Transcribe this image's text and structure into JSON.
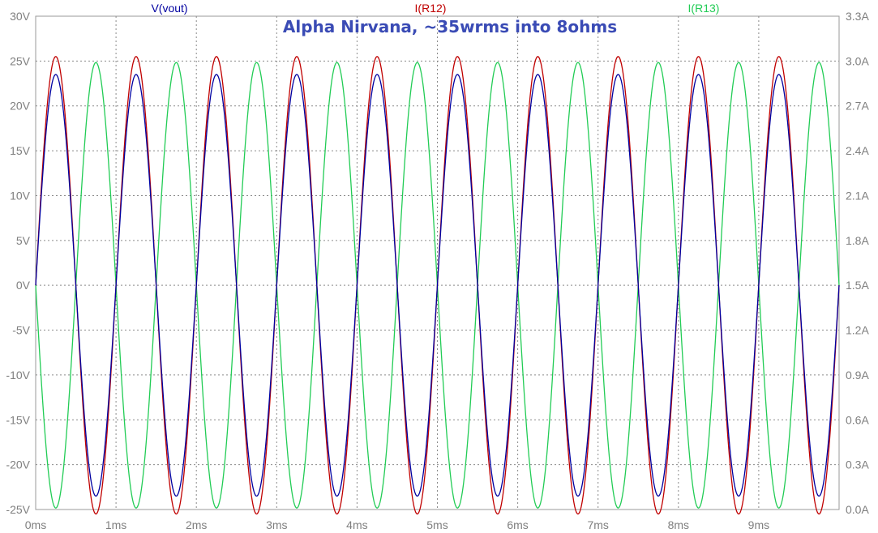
{
  "chart_data": {
    "type": "line",
    "annotation": "Alpha Nirvana, ~35wrms into 8ohms",
    "x_axis": {
      "unit": "ms",
      "range": [
        0,
        10
      ],
      "ticks": [
        "0ms",
        "1ms",
        "2ms",
        "3ms",
        "4ms",
        "5ms",
        "6ms",
        "7ms",
        "8ms",
        "9ms"
      ]
    },
    "y_left": {
      "range": [
        -25,
        30
      ],
      "ticks": [
        "30V",
        "25V",
        "20V",
        "15V",
        "10V",
        "5V",
        "0V",
        "-5V",
        "-10V",
        "-15V",
        "-20V",
        "-25V"
      ]
    },
    "y_right": {
      "range": [
        0,
        3.3
      ],
      "ticks": [
        "3.3A",
        "3.0A",
        "2.7A",
        "2.4A",
        "2.1A",
        "1.8A",
        "1.5A",
        "1.2A",
        "0.9A",
        "0.6A",
        "0.3A",
        "0.0A"
      ]
    },
    "grid": true,
    "series": [
      {
        "name": "V(vout)",
        "color": "#0000a0",
        "axis": "left",
        "waveform": "sine",
        "frequency_khz": 1.0,
        "offset": 0,
        "amplitude": 23.5,
        "phase_deg": 0
      },
      {
        "name": "I(R12)",
        "color": "#c00000",
        "axis": "right",
        "waveform": "sine",
        "frequency_khz": 1.0,
        "offset": 1.5,
        "amplitude": 1.53,
        "phase_deg": 0
      },
      {
        "name": "I(R13)",
        "color": "#22cc55",
        "axis": "right",
        "waveform": "sine",
        "frequency_khz": 1.0,
        "offset": 1.5,
        "amplitude": 1.49,
        "phase_deg": 180
      }
    ]
  }
}
